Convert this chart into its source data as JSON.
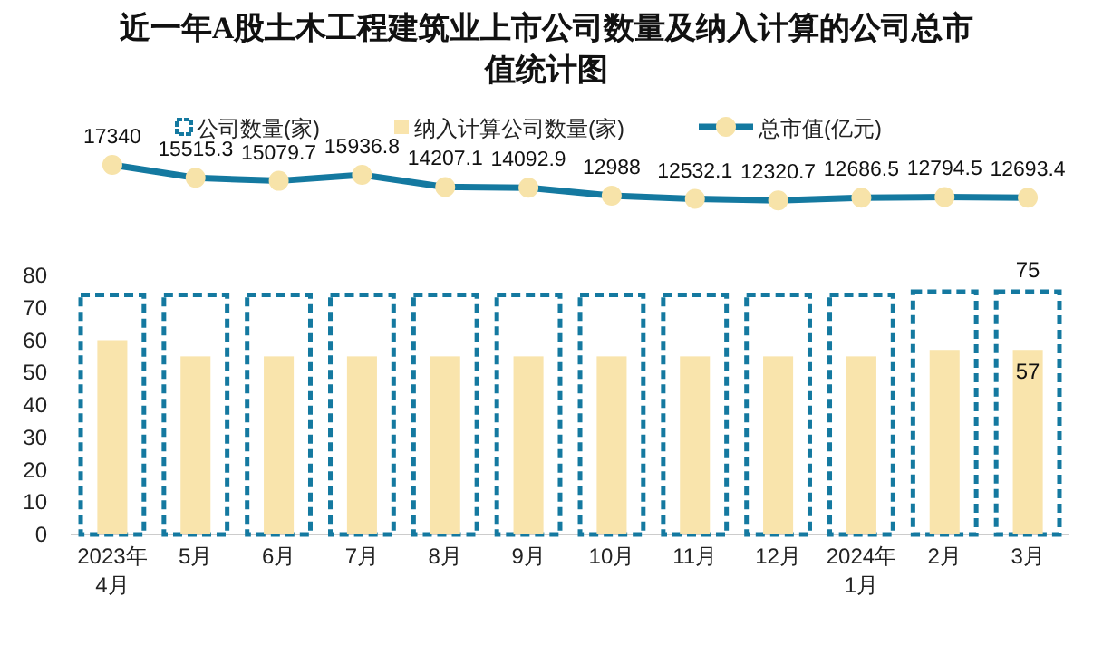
{
  "chart_data": [
    {
      "type": "line",
      "title": "近一年A股土木工程建筑业上市公司数量及纳入计算的公司总市值统计图",
      "categories": [
        null,
        null,
        null,
        null,
        null,
        null,
        null,
        null,
        null,
        null,
        null,
        null
      ],
      "series": [
        {
          "name": "总市值(亿元)",
          "color": "#1479a0",
          "values": [
            17340,
            15515.3,
            15079.7,
            15936.8,
            14207.1,
            14092.9,
            12988,
            12532.1,
            12320.7,
            12686.5,
            12794.5,
            12693.4
          ]
        }
      ],
      "marker": "circle",
      "data_labels": true,
      "tick_labels": false,
      "legend": "top"
    },
    {
      "type": "bar",
      "categories": [
        "2023年4月",
        "5月",
        "6月",
        "7月",
        "8月",
        "9月",
        "10月",
        "11月",
        "12月",
        "2024年1月",
        "2月",
        "3月"
      ],
      "series": [
        {
          "name": "公司数量(家)",
          "color": "#1479a0",
          "line_style": "dashed",
          "values": [
            74,
            74,
            74,
            74,
            74,
            74,
            74,
            74,
            74,
            74,
            75,
            75
          ],
          "value_labels": [
            null,
            null,
            null,
            null,
            null,
            null,
            null,
            null,
            null,
            null,
            null,
            "75"
          ]
        },
        {
          "name": "纳入计算公司数量(家)",
          "color": "#f9e4ac",
          "values": [
            60,
            55,
            55,
            55,
            55,
            55,
            55,
            55,
            55,
            55,
            57,
            57
          ],
          "value_labels": [
            null,
            null,
            null,
            null,
            null,
            null,
            null,
            null,
            null,
            null,
            null,
            "57"
          ]
        }
      ],
      "ylim": [
        0,
        80
      ],
      "yticks": [
        0,
        10,
        20,
        30,
        40,
        50,
        60,
        70,
        80
      ],
      "legend": "top"
    }
  ]
}
